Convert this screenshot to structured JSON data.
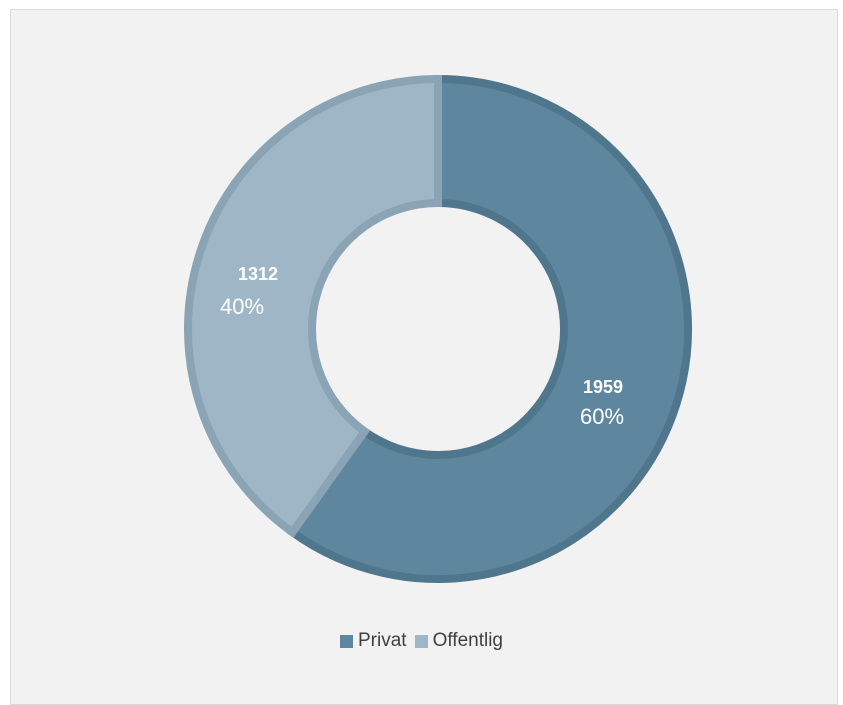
{
  "chart_data": {
    "type": "pie",
    "style": "donut",
    "series": [
      {
        "name": "Privat",
        "value": 1959,
        "percent": "60%",
        "color": "#5e879f"
      },
      {
        "name": "Offentlig",
        "value": 1312,
        "percent": "40%",
        "color": "#9eb6c6"
      }
    ],
    "legend": {
      "position": "bottom"
    },
    "colors": {
      "background": "#f2f2f2",
      "label_text": "#ffffff"
    }
  }
}
